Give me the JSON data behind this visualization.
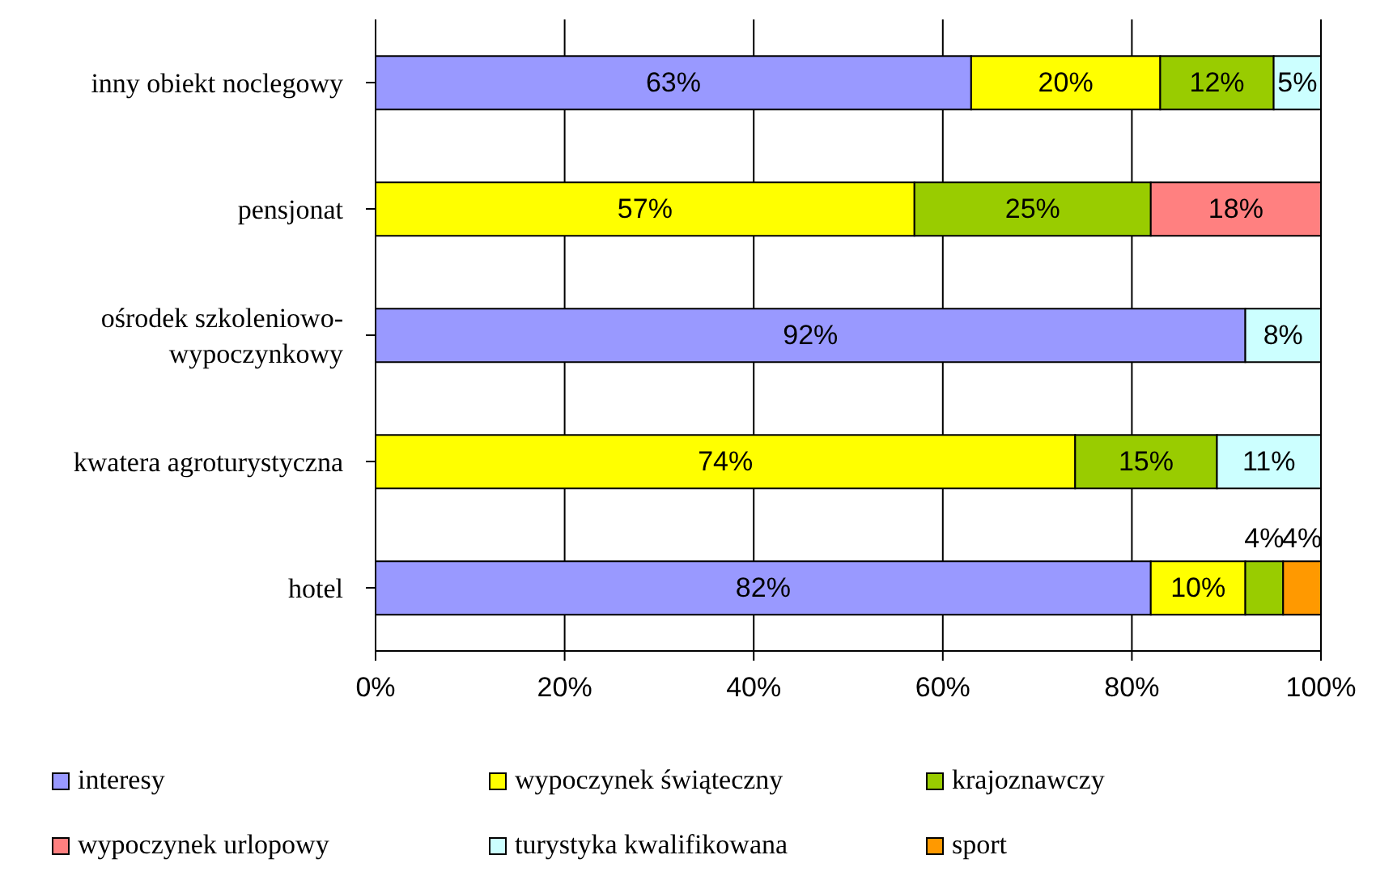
{
  "chart_data": {
    "type": "bar",
    "orientation": "horizontal",
    "stacked": true,
    "categories": [
      "inny obiekt noclegowy",
      "pensjonat",
      "ośrodek szkoleniowo-wypoczynkowy",
      "kwatera agroturystyczna",
      "hotel"
    ],
    "series": [
      {
        "name": "interesy",
        "color": "#9999ff",
        "values": [
          63,
          null,
          92,
          null,
          82
        ],
        "value_labels": [
          "63%",
          null,
          "92%",
          null,
          "82%"
        ]
      },
      {
        "name": "wypoczynek świąteczny",
        "color": "#ffff00",
        "values": [
          20,
          57,
          null,
          74,
          10
        ],
        "value_labels": [
          "20%",
          "57%",
          null,
          "74%",
          "10%"
        ]
      },
      {
        "name": "krajoznawczy",
        "color": "#99cc00",
        "values": [
          12,
          25,
          null,
          15,
          4
        ],
        "value_labels": [
          "12%",
          "25%",
          null,
          "15%",
          "4%"
        ]
      },
      {
        "name": "wypoczynek urlopowy",
        "color": "#ff8080",
        "values": [
          null,
          18,
          null,
          null,
          null
        ],
        "value_labels": [
          null,
          "18%",
          null,
          null,
          null
        ]
      },
      {
        "name": "turystyka kwalifikowana",
        "color": "#ccffff",
        "values": [
          5,
          null,
          8,
          11,
          null
        ],
        "value_labels": [
          "5%",
          null,
          "8%",
          "11%",
          null
        ]
      },
      {
        "name": "sport",
        "color": "#ff9900",
        "values": [
          null,
          null,
          null,
          null,
          4
        ],
        "value_labels": [
          null,
          null,
          null,
          null,
          "4%"
        ]
      }
    ],
    "xlim": [
      0,
      100
    ],
    "xticks": [
      {
        "value": 0,
        "label": "0%"
      },
      {
        "value": 20,
        "label": "20%"
      },
      {
        "value": 40,
        "label": "40%"
      },
      {
        "value": 60,
        "label": "60%"
      },
      {
        "value": 80,
        "label": "80%"
      },
      {
        "value": 100,
        "label": "100%"
      }
    ],
    "grid": "x",
    "legend": "bottom"
  }
}
